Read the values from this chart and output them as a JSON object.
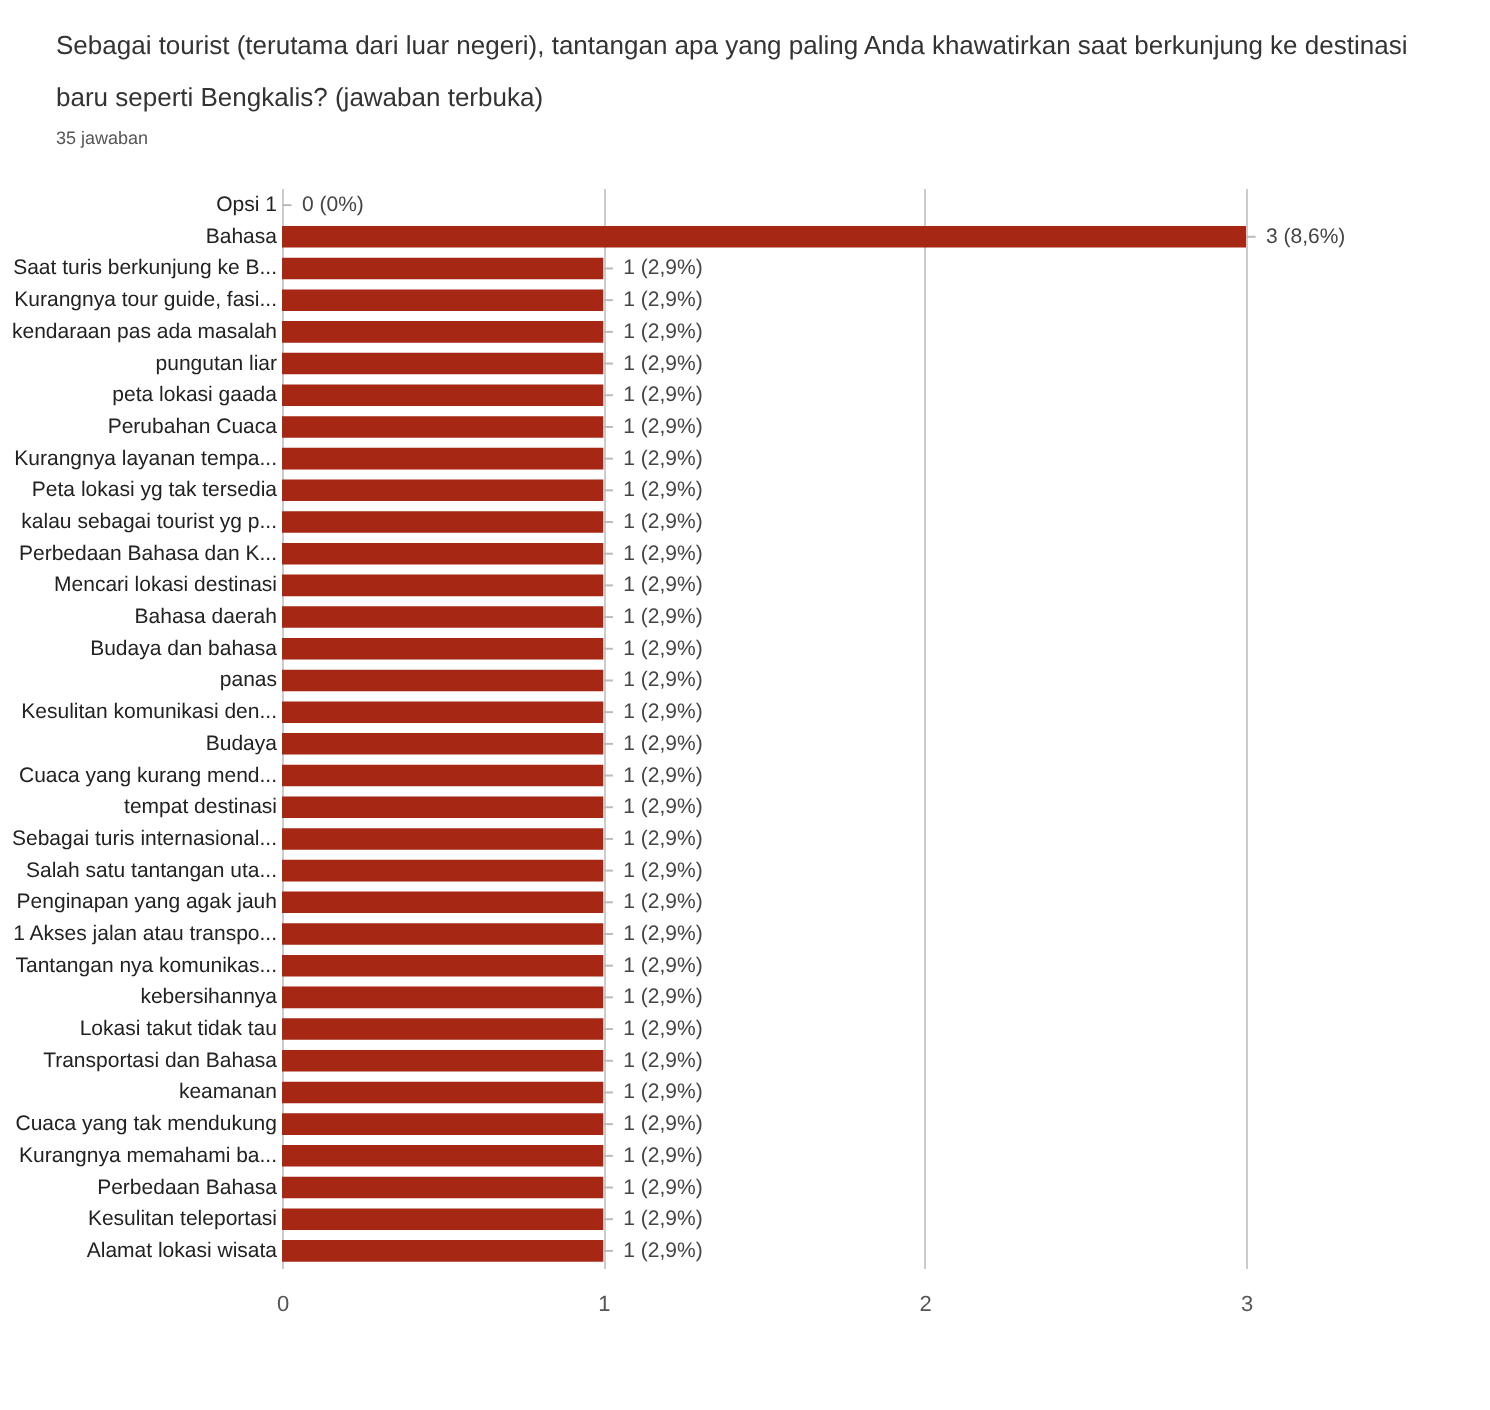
{
  "chart_data": {
    "type": "bar",
    "orientation": "horizontal",
    "title": "Sebagai tourist (terutama dari luar negeri), tantangan apa yang paling Anda khawatirkan saat berkunjung ke destinasi baru seperti Bengkalis? (jawaban terbuka)",
    "subtitle": "35 jawaban",
    "categories": [
      "Opsi 1",
      "Bahasa",
      "Saat turis berkunjung ke B...",
      "Kurangnya tour guide, fasi...",
      "kendaraan pas ada masalah",
      "pungutan liar",
      "peta lokasi gaada",
      "Perubahan Cuaca",
      "Kurangnya layanan tempa...",
      "Peta lokasi yg tak tersedia",
      "kalau sebagai tourist yg p...",
      "Perbedaan Bahasa dan K...",
      "Mencari lokasi destinasi",
      "Bahasa daerah",
      "Budaya dan bahasa",
      "panas",
      "Kesulitan komunikasi den...",
      "Budaya",
      "Cuaca yang kurang mend...",
      "tempat destinasi",
      "Sebagai turis internasional...",
      "Salah satu tantangan uta...",
      "Penginapan yang agak jauh",
      "1 Akses jalan atau transpo...",
      "Tantangan nya komunikas...",
      "kebersihannya",
      "Lokasi takut tidak tau",
      "Transportasi dan Bahasa",
      "keamanan",
      "Cuaca yang tak mendukung",
      "Kurangnya memahami ba...",
      "Perbedaan Bahasa",
      "Kesulitan teleportasi",
      "Alamat lokasi wisata"
    ],
    "values": [
      0,
      3,
      1,
      1,
      1,
      1,
      1,
      1,
      1,
      1,
      1,
      1,
      1,
      1,
      1,
      1,
      1,
      1,
      1,
      1,
      1,
      1,
      1,
      1,
      1,
      1,
      1,
      1,
      1,
      1,
      1,
      1,
      1,
      1
    ],
    "value_labels": [
      "0 (0%)",
      "3 (8,6%)",
      "1 (2,9%)",
      "1 (2,9%)",
      "1 (2,9%)",
      "1 (2,9%)",
      "1 (2,9%)",
      "1 (2,9%)",
      "1 (2,9%)",
      "1 (2,9%)",
      "1 (2,9%)",
      "1 (2,9%)",
      "1 (2,9%)",
      "1 (2,9%)",
      "1 (2,9%)",
      "1 (2,9%)",
      "1 (2,9%)",
      "1 (2,9%)",
      "1 (2,9%)",
      "1 (2,9%)",
      "1 (2,9%)",
      "1 (2,9%)",
      "1 (2,9%)",
      "1 (2,9%)",
      "1 (2,9%)",
      "1 (2,9%)",
      "1 (2,9%)",
      "1 (2,9%)",
      "1 (2,9%)",
      "1 (2,9%)",
      "1 (2,9%)",
      "1 (2,9%)",
      "1 (2,9%)",
      "1 (2,9%)"
    ],
    "color": "#a52714",
    "xlim": [
      0,
      3
    ],
    "xticks": [
      0,
      1,
      2,
      3
    ],
    "grid": "x"
  }
}
